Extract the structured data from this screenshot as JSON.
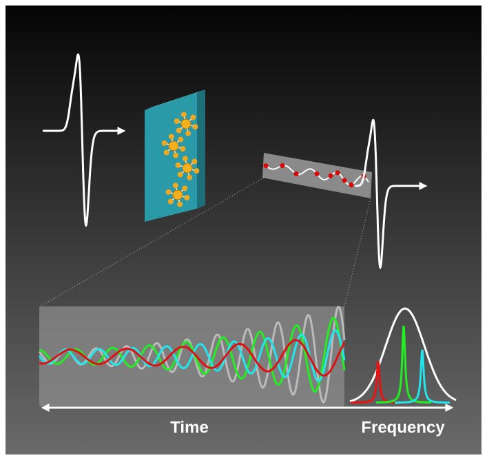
{
  "labels": {
    "time": "Time",
    "frequency": "Frequency"
  }
}
